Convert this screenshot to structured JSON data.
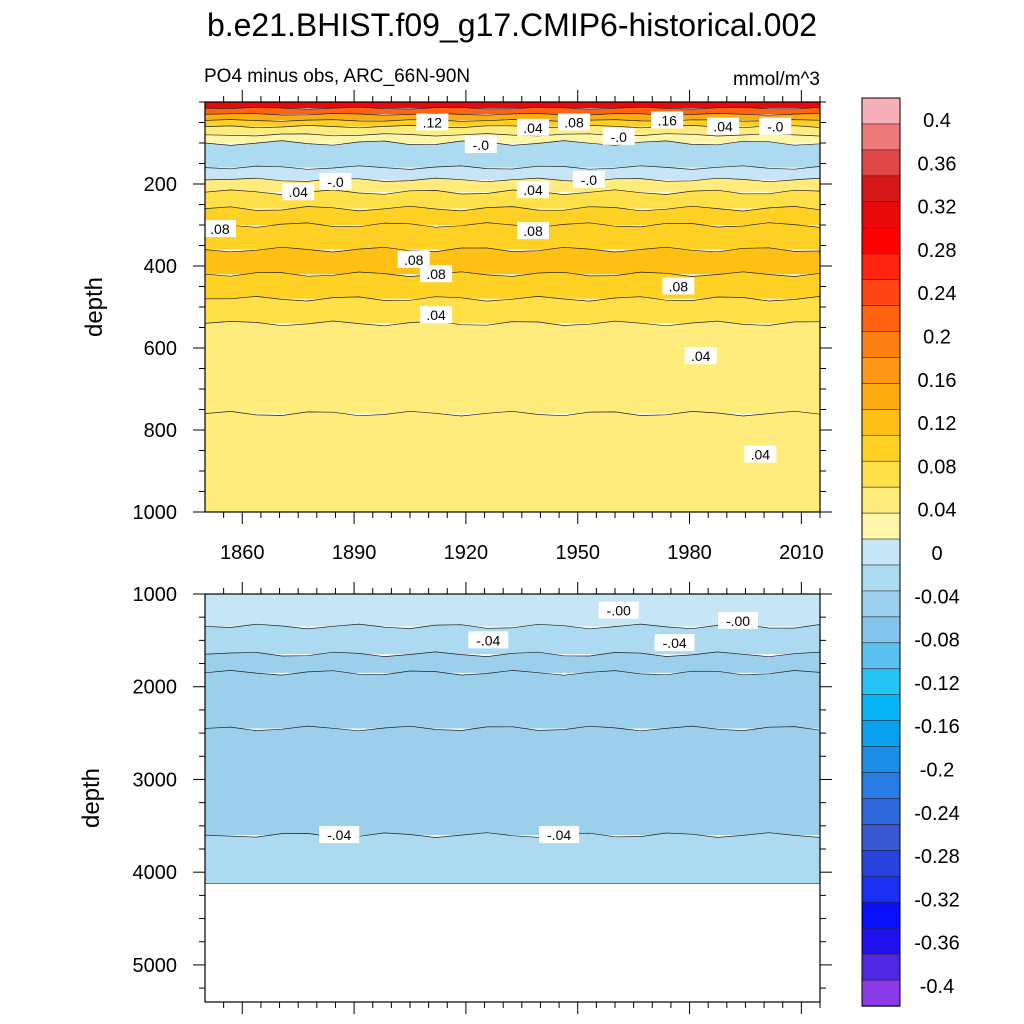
{
  "chart_data": [
    {
      "type": "heatmap",
      "title": "b.e21.BHIST.f09_g17.CMIP6-historical.002",
      "subtitle_left": "PO4 minus obs, ARC_66N-90N",
      "subtitle_right": "mmol/m^3",
      "ylabel": "depth",
      "xlim": [
        1850,
        2015
      ],
      "ylim": [
        1000,
        0
      ],
      "x_ticks": [
        1860,
        1890,
        1920,
        1950,
        1980,
        2010
      ],
      "y_ticks": [
        200,
        400,
        600,
        800,
        1000
      ],
      "bands": [
        {
          "top": 0,
          "bottom": 15,
          "value": 0.3
        },
        {
          "top": 15,
          "bottom": 30,
          "value": 0.2
        },
        {
          "top": 30,
          "bottom": 45,
          "value": 0.12
        },
        {
          "top": 45,
          "bottom": 60,
          "value": 0.08
        },
        {
          "top": 60,
          "bottom": 80,
          "value": 0.04
        },
        {
          "top": 80,
          "bottom": 100,
          "value": 0.0
        },
        {
          "top": 100,
          "bottom": 160,
          "value": -0.04
        },
        {
          "top": 160,
          "bottom": 190,
          "value": -0.02
        },
        {
          "top": 190,
          "bottom": 220,
          "value": 0.02
        },
        {
          "top": 220,
          "bottom": 260,
          "value": 0.05
        },
        {
          "top": 260,
          "bottom": 300,
          "value": 0.07
        },
        {
          "top": 300,
          "bottom": 360,
          "value": 0.09
        },
        {
          "top": 360,
          "bottom": 420,
          "value": 0.1
        },
        {
          "top": 420,
          "bottom": 480,
          "value": 0.08
        },
        {
          "top": 480,
          "bottom": 540,
          "value": 0.06
        },
        {
          "top": 540,
          "bottom": 760,
          "value": 0.04
        },
        {
          "top": 760,
          "bottom": 1000,
          "value": 0.02
        }
      ],
      "contour_labels": [
        {
          "text": ".12",
          "x": 1911,
          "depth": 50
        },
        {
          "text": "-.0",
          "x": 1924,
          "depth": 105
        },
        {
          "text": ".04",
          "x": 1938,
          "depth": 63
        },
        {
          "text": ".08",
          "x": 1949,
          "depth": 50
        },
        {
          "text": "-.0",
          "x": 1961,
          "depth": 85
        },
        {
          "text": ".16",
          "x": 1974,
          "depth": 45
        },
        {
          "text": ".04",
          "x": 1989,
          "depth": 60
        },
        {
          "text": "-.0",
          "x": 2003,
          "depth": 60
        },
        {
          "text": ".04",
          "x": 1875,
          "depth": 220
        },
        {
          "text": "-.0",
          "x": 1885,
          "depth": 195
        },
        {
          "text": ".04",
          "x": 1938,
          "depth": 215
        },
        {
          "text": "-.0",
          "x": 1953,
          "depth": 190
        },
        {
          "text": ".08",
          "x": 1854,
          "depth": 310
        },
        {
          "text": ".08",
          "x": 1938,
          "depth": 315
        },
        {
          "text": ".08",
          "x": 1906,
          "depth": 385
        },
        {
          "text": ".08",
          "x": 1912,
          "depth": 420
        },
        {
          "text": ".08",
          "x": 1977,
          "depth": 450
        },
        {
          "text": ".04",
          "x": 1912,
          "depth": 520
        },
        {
          "text": ".04",
          "x": 1983,
          "depth": 620
        },
        {
          "text": ".04",
          "x": 1999,
          "depth": 860
        }
      ]
    },
    {
      "type": "heatmap",
      "ylabel": "depth",
      "xlim": [
        1850,
        2015
      ],
      "ylim": [
        5400,
        1000
      ],
      "y_ticks": [
        1000,
        2000,
        3000,
        4000,
        5000
      ],
      "bottom_of_data": 4120,
      "bands": [
        {
          "top": 1000,
          "bottom": 1350,
          "value": -0.02
        },
        {
          "top": 1350,
          "bottom": 1650,
          "value": -0.04
        },
        {
          "top": 1650,
          "bottom": 1850,
          "value": -0.06
        },
        {
          "top": 1850,
          "bottom": 2450,
          "value": -0.07
        },
        {
          "top": 2450,
          "bottom": 3600,
          "value": -0.05
        },
        {
          "top": 3600,
          "bottom": 4120,
          "value": -0.035
        }
      ],
      "contour_labels": [
        {
          "text": "-.00",
          "x": 1961,
          "depth": 1180
        },
        {
          "text": "-.00",
          "x": 1993,
          "depth": 1290
        },
        {
          "text": "-.04",
          "x": 1926,
          "depth": 1500
        },
        {
          "text": "-.04",
          "x": 1976,
          "depth": 1530
        },
        {
          "text": "-.04",
          "x": 1886,
          "depth": 3600
        },
        {
          "text": "-.04",
          "x": 1945,
          "depth": 3600
        }
      ]
    }
  ],
  "colorbar": {
    "labels": [
      "0.4",
      "0.36",
      "0.32",
      "0.28",
      "0.24",
      "0.2",
      "0.16",
      "0.12",
      "0.08",
      "0.04",
      "0",
      "-0.04",
      "-0.08",
      "-0.12",
      "-0.16",
      "-0.2",
      "-0.24",
      "-0.28",
      "-0.32",
      "-0.36",
      "-0.4"
    ],
    "colors": [
      "#f7b0b8",
      "#ee7a7c",
      "#e04848",
      "#d81818",
      "#e80a0a",
      "#fe0000",
      "#ff2410",
      "#ff4516",
      "#ff6210",
      "#ff8012",
      "#ff9816",
      "#ffab12",
      "#ffc016",
      "#ffd125",
      "#ffe048",
      "#ffec7c",
      "#fff6aa",
      "#c6e6f6",
      "#acdaf0",
      "#9ccfeb",
      "#84c4ec",
      "#5cc0f0",
      "#24c4f4",
      "#06b4f4",
      "#0aa0f0",
      "#1c8ee8",
      "#2a7ce4",
      "#3068dc",
      "#3a58d0",
      "#2842e0",
      "#1c30f4",
      "#0a10fa",
      "#2010f0",
      "#5028e4",
      "#8a3ae8"
    ]
  }
}
